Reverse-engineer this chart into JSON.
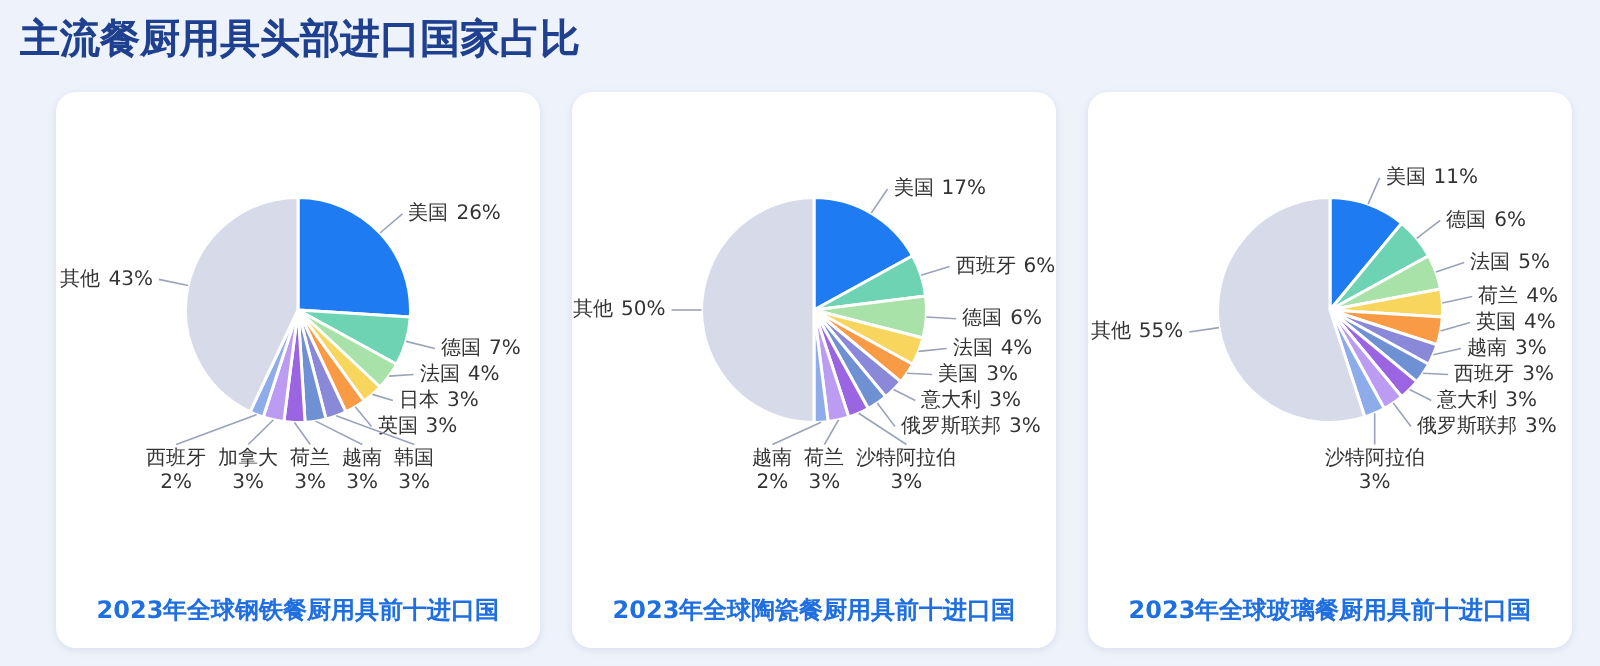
{
  "chart_data": [
    {
      "type": "pie",
      "title": "2023年全球钢铁餐厨用具前十进口国",
      "annotations": [
        "主流餐厨用具头部进口国家占比"
      ],
      "legend": false,
      "categories": [
        "美国",
        "德国",
        "法国",
        "日本",
        "英国",
        "韩国",
        "越南",
        "荷兰",
        "加拿大",
        "西班牙",
        "其他"
      ],
      "values": [
        26,
        7,
        4,
        3,
        3,
        3,
        3,
        3,
        3,
        2,
        43
      ],
      "value_labels": [
        "26%",
        "7%",
        "4%",
        "3%",
        "3%",
        "3%",
        "3%",
        "3%",
        "3%",
        "2%",
        "43%"
      ],
      "colors": [
        "#1f7bf2",
        "#6dd3b2",
        "#a9e2a9",
        "#f8d55c",
        "#f99a45",
        "#8a88d9",
        "#6f90d2",
        "#9b64e2",
        "#bb9cf2",
        "#8eacea",
        "#d6dae9"
      ]
    },
    {
      "type": "pie",
      "title": "2023年全球陶瓷餐厨用具前十进口国",
      "legend": false,
      "categories": [
        "美国",
        "西班牙",
        "德国",
        "法国",
        "美国",
        "意大利",
        "俄罗斯联邦",
        "沙特阿拉伯",
        "荷兰",
        "越南",
        "其他"
      ],
      "values": [
        17,
        6,
        6,
        4,
        3,
        3,
        3,
        3,
        3,
        2,
        50
      ],
      "value_labels": [
        "17%",
        "6%",
        "6%",
        "4%",
        "3%",
        "3%",
        "3%",
        "3%",
        "3%",
        "2%",
        "50%"
      ],
      "colors": [
        "#1f7bf2",
        "#6dd3b2",
        "#a9e2a9",
        "#f8d55c",
        "#f99a45",
        "#8a88d9",
        "#6f90d2",
        "#9b64e2",
        "#bb9cf2",
        "#8eacea",
        "#d6dae9"
      ]
    },
    {
      "type": "pie",
      "title": "2023年全球玻璃餐厨用具前十进口国",
      "legend": false,
      "categories": [
        "美国",
        "德国",
        "法国",
        "荷兰",
        "英国",
        "越南",
        "西班牙",
        "意大利",
        "俄罗斯联邦",
        "沙特阿拉伯",
        "其他"
      ],
      "values": [
        11,
        6,
        5,
        4,
        4,
        3,
        3,
        3,
        3,
        3,
        55
      ],
      "value_labels": [
        "11%",
        "6%",
        "5%",
        "4%",
        "4%",
        "3%",
        "3%",
        "3%",
        "3%",
        "3%",
        "55%"
      ],
      "colors": [
        "#1f7bf2",
        "#6dd3b2",
        "#a9e2a9",
        "#f8d55c",
        "#f99a45",
        "#8a88d9",
        "#6f90d2",
        "#9b64e2",
        "#bb9cf2",
        "#8eacea",
        "#d6dae9"
      ]
    }
  ]
}
